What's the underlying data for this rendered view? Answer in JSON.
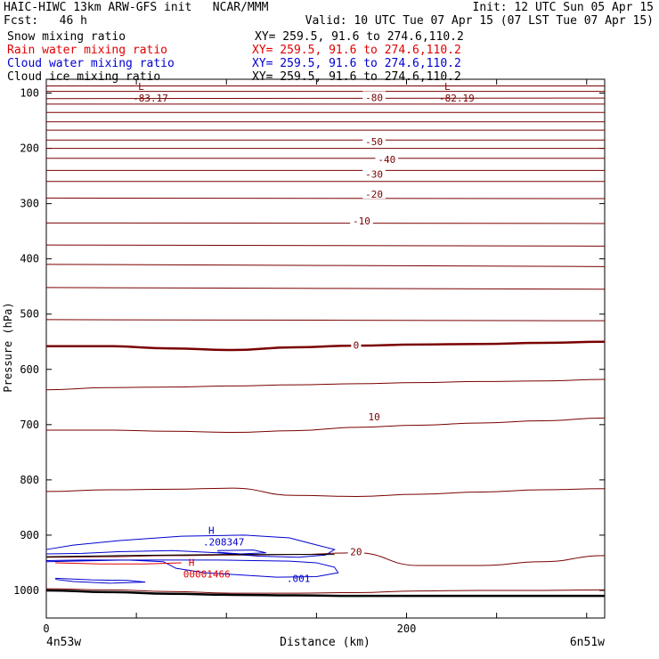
{
  "header": {
    "title_left": "HAIC-HIWC 13km ARW-GFS init   NCAR/MMM",
    "init": "Init: 12 UTC Sun 05 Apr 15",
    "fcst": "Fcst:   46 h",
    "valid": "Valid: 10 UTC Tue 07 Apr 15 (07 LST Tue 07 Apr 15)"
  },
  "fields": [
    {
      "name": "Snow mixing ratio",
      "xy": "XY= 259.5, 91.6 to 274.6,110.2",
      "color": "#000000"
    },
    {
      "name": "Rain water mixing ratio",
      "xy": "XY= 259.5, 91.6 to 274.6,110.2",
      "color": "#e00000"
    },
    {
      "name": "Cloud water mixing ratio",
      "xy": "XY= 259.5, 91.6 to 274.6,110.2",
      "color": "#0000d0"
    },
    {
      "name": "Cloud ice mixing ratio",
      "xy": "XY= 259.5, 91.6 to 274.6,110.2",
      "color": "#000000"
    }
  ],
  "chart_data": {
    "type": "contour cross-section",
    "ylabel": "Pressure (hPa)",
    "xlabel": "Distance (km)",
    "x_left_label": "4n53w",
    "x_right_label": "6n51w",
    "xlim": [
      0,
      310
    ],
    "ylim": [
      1050,
      75
    ],
    "x_ticks": [
      0,
      50,
      100,
      150,
      200,
      250,
      300
    ],
    "x_tick_labels": [
      "0",
      "200"
    ],
    "y_ticks": [
      100,
      200,
      300,
      400,
      500,
      600,
      700,
      800,
      900,
      1000
    ],
    "temperature_color": "#7a0000",
    "temperature_contours": [
      {
        "p": [
          87,
          87
        ]
      },
      {
        "p": [
          97,
          97
        ]
      },
      {
        "p": [
          110,
          109
        ]
      },
      {
        "p": [
          120,
          120
        ]
      },
      {
        "p": [
          135,
          135
        ]
      },
      {
        "p": [
          152,
          152
        ]
      },
      {
        "p": [
          167,
          167
        ]
      },
      {
        "p": [
          185,
          185
        ]
      },
      {
        "p": [
          200,
          200
        ]
      },
      {
        "p": [
          218,
          218
        ]
      },
      {
        "p": [
          240,
          240
        ]
      },
      {
        "p": [
          260,
          260
        ]
      },
      {
        "p": [
          290,
          291
        ]
      },
      {
        "p": [
          335,
          336
        ]
      },
      {
        "p": [
          375,
          377
        ]
      },
      {
        "p": [
          410,
          414
        ]
      },
      {
        "p": [
          452,
          455
        ]
      },
      {
        "p": [
          510,
          512
        ]
      },
      {
        "p": [
          558,
          558,
          562,
          565,
          560,
          557,
          555,
          554,
          552,
          550
        ],
        "thick": true
      },
      {
        "p": [
          637,
          633,
          632,
          630,
          628,
          626,
          624,
          622,
          621,
          618
        ]
      },
      {
        "p": [
          710,
          710,
          712,
          714,
          711,
          705,
          701,
          697,
          693,
          688
        ]
      },
      {
        "p": [
          821,
          818,
          817,
          815,
          828,
          830,
          826,
          822,
          818,
          816
        ]
      },
      {
        "p": [
          940,
          939,
          937,
          936,
          935,
          932,
          955,
          955,
          948,
          937
        ]
      },
      {
        "p": [
          997,
          999,
          1002,
          1005,
          1005,
          1004,
          1001,
          1000,
          1000,
          999
        ]
      }
    ],
    "ground": {
      "p": [
        1000,
        1003,
        1006,
        1008,
        1009,
        1010,
        1010,
        1010,
        1010,
        1010
      ]
    },
    "contour_labels": [
      {
        "text": "-80",
        "x": 182,
        "p": 108
      },
      {
        "text": "-50",
        "x": 182,
        "p": 188
      },
      {
        "text": "-40",
        "x": 189,
        "p": 220
      },
      {
        "text": "-30",
        "x": 182,
        "p": 247
      },
      {
        "text": "-20",
        "x": 182,
        "p": 283
      },
      {
        "text": "-10",
        "x": 175,
        "p": 331
      },
      {
        "text": "0",
        "x": 172,
        "p": 556
      },
      {
        "text": "10",
        "x": 182,
        "p": 686
      },
      {
        "text": "20",
        "x": 172,
        "p": 930
      }
    ],
    "extrema": [
      {
        "mark": "L",
        "value": "-83.17",
        "x": 51,
        "p": 94,
        "color": "#7a0000"
      },
      {
        "mark": "L",
        "value": "-82.19",
        "x": 221,
        "p": 94,
        "color": "#7a0000"
      },
      {
        "mark": "H",
        "value": ".208347",
        "x": 90,
        "p": 898,
        "color": "#0000d0"
      },
      {
        "mark": "H",
        "value": "00001466",
        "x": 79,
        "p": 956,
        "color": "#e00000"
      }
    ],
    "cloud_water_labels": [
      {
        "text": ".001",
        "x": 140,
        "p": 978
      }
    ],
    "cloud_water_contours": [
      {
        "pts": [
          [
            0,
            926
          ],
          [
            15,
            918
          ],
          [
            40,
            910
          ],
          [
            75,
            902
          ],
          [
            110,
            900
          ],
          [
            135,
            905
          ],
          [
            148,
            916
          ],
          [
            160,
            926
          ],
          [
            155,
            936
          ],
          [
            140,
            940
          ],
          [
            118,
            938
          ],
          [
            95,
            932
          ],
          [
            70,
            928
          ],
          [
            40,
            930
          ],
          [
            20,
            933
          ],
          [
            0,
            934
          ]
        ]
      },
      {
        "pts": [
          [
            0,
            946
          ],
          [
            20,
            945
          ],
          [
            45,
            945
          ],
          [
            65,
            948
          ],
          [
            72,
            960
          ],
          [
            88,
            968
          ],
          [
            108,
            972
          ],
          [
            128,
            976
          ],
          [
            150,
            975
          ],
          [
            162,
            968
          ],
          [
            160,
            958
          ],
          [
            150,
            950
          ],
          [
            135,
            947
          ],
          [
            115,
            946
          ],
          [
            95,
            945
          ],
          [
            70,
            945
          ],
          [
            45,
            945
          ],
          [
            0,
            948
          ]
        ]
      },
      {
        "pts": [
          [
            5,
            978
          ],
          [
            25,
            981
          ],
          [
            45,
            982
          ],
          [
            55,
            985
          ],
          [
            35,
            987
          ],
          [
            15,
            984
          ],
          [
            5,
            980
          ]
        ]
      },
      {
        "pts": [
          [
            95,
            928
          ],
          [
            115,
            927
          ],
          [
            122,
            932
          ],
          [
            108,
            934
          ],
          [
            95,
            931
          ]
        ]
      }
    ],
    "rain_contours": [
      {
        "pts": [
          [
            5,
            950
          ],
          [
            30,
            952
          ],
          [
            55,
            952
          ],
          [
            75,
            950
          ]
        ]
      }
    ],
    "solid_contours": [
      {
        "pts": [
          [
            0,
            939
          ],
          [
            40,
            937
          ],
          [
            100,
            935
          ],
          [
            160,
            935
          ]
        ]
      }
    ]
  }
}
